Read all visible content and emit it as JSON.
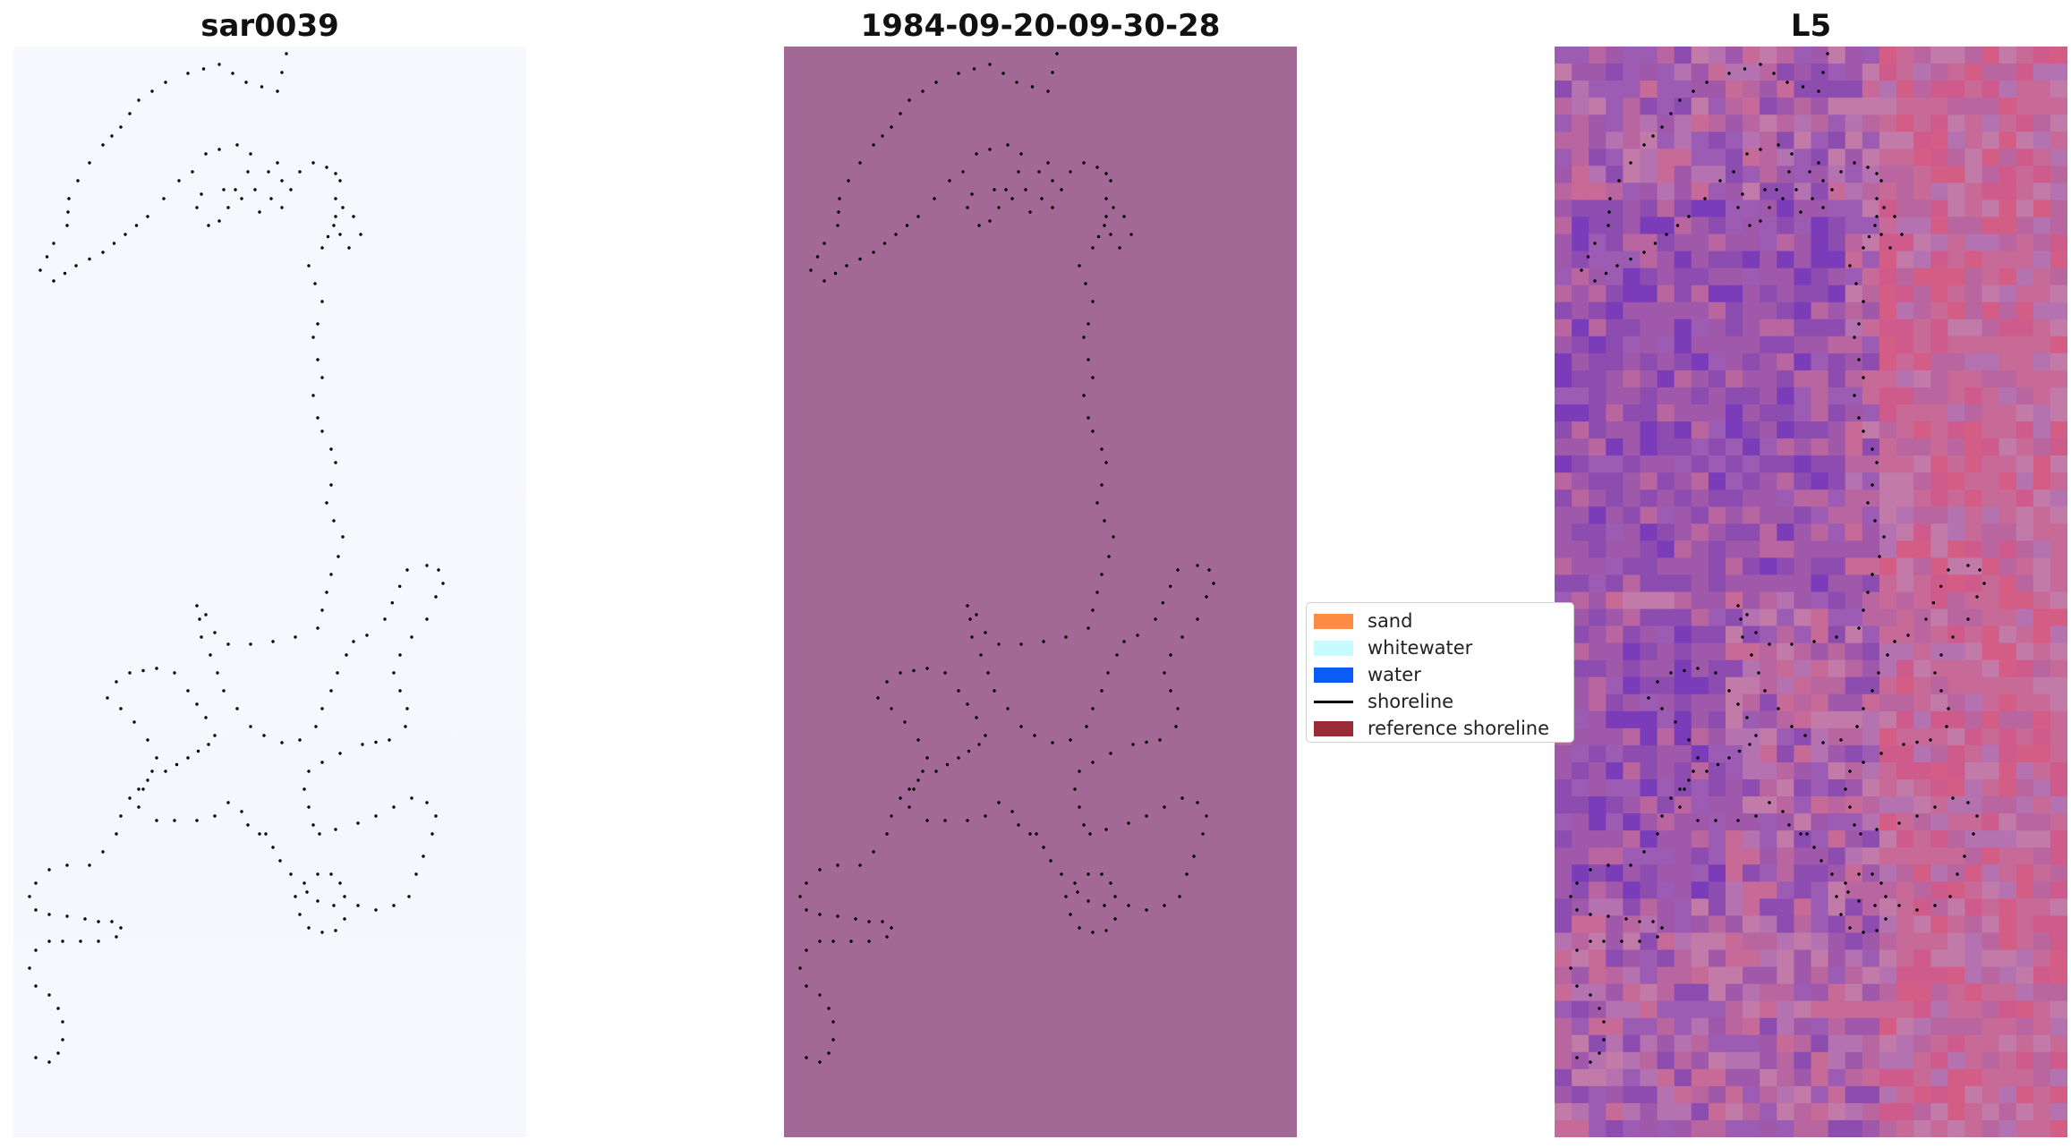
{
  "panels": [
    {
      "title": "sar0039",
      "background": "#f7f8fe"
    },
    {
      "title": "1984-09-20-09-30-28",
      "background": "#a36996"
    },
    {
      "title": "L5",
      "background": "#b86aa0"
    }
  ],
  "legend": {
    "items": [
      {
        "label": "sand",
        "color": "#ff8c42",
        "kind": "patch"
      },
      {
        "label": "whitewater",
        "color": "#c8fbff",
        "kind": "patch"
      },
      {
        "label": "water",
        "color": "#0a5cf5",
        "kind": "patch"
      },
      {
        "label": "shoreline",
        "color": "#000000",
        "kind": "line"
      },
      {
        "label": "reference shoreline",
        "color": "#9a2a35",
        "kind": "patch"
      }
    ]
  },
  "palette": {
    "l5_tiles": [
      "#b865a0",
      "#c86a98",
      "#a058aa",
      "#8d4cb0",
      "#cf5b8c",
      "#b472b0",
      "#7a3cb8",
      "#d45d86",
      "#9c5cb4",
      "#c27aa8"
    ]
  }
}
